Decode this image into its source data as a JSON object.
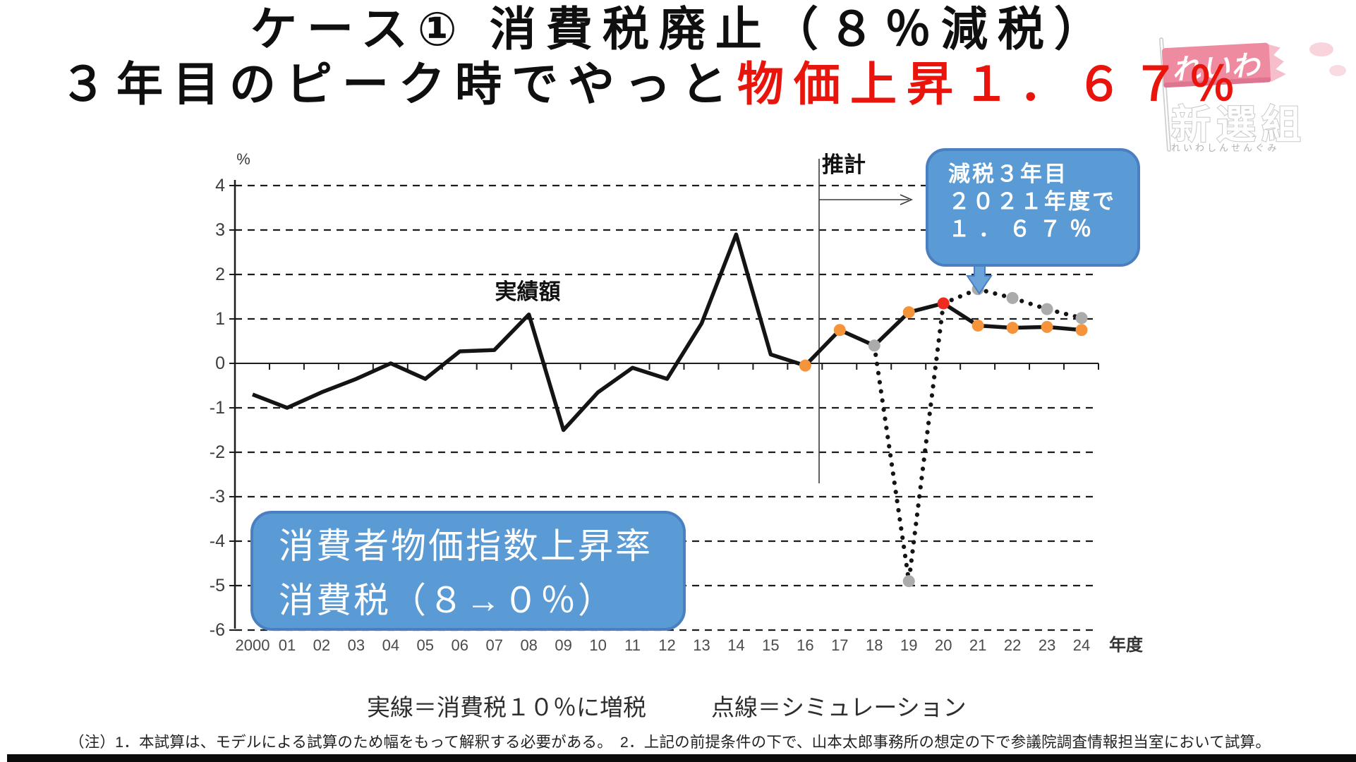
{
  "title": {
    "line1": "ケース① 消費税廃止（８％減税）",
    "line2_black": "３年目のピーク時でやっと",
    "line2_red": "物価上昇１．６７％"
  },
  "logo": {
    "flag_text": "れいわ",
    "name_text": "新選組",
    "reading_text": "れいわしんせんぐみ",
    "pink": "#ef8ba0"
  },
  "theme": {
    "box_blue": "#5b9bd5",
    "box_border": "#4a7fc1",
    "arrow_blue": "#6aa3da",
    "red_text": "#e9150d",
    "line_black": "#141414",
    "marker_orange": "#f5943a",
    "marker_gray": "#ababab",
    "marker_red": "#ee2b1e"
  },
  "chart_data": {
    "type": "line",
    "title": "消費者物価指数上昇率 消費税（８→０％）",
    "ylabel": "%",
    "xlabel": "年度",
    "ylim": [
      -6,
      4
    ],
    "yticks": [
      4,
      3,
      2,
      1,
      0,
      -1,
      -2,
      -3,
      -4,
      -5,
      -6
    ],
    "grid": "dashed-horizontal",
    "categories": [
      "2000",
      "01",
      "02",
      "03",
      "04",
      "05",
      "06",
      "07",
      "08",
      "09",
      "10",
      "11",
      "12",
      "13",
      "14",
      "15",
      "16",
      "17",
      "18",
      "19",
      "20",
      "21",
      "22",
      "23",
      "24"
    ],
    "series": [
      {
        "name": "実線＝消費税１０％に増税（実績額）",
        "style": "solid",
        "start_index": 0,
        "values": [
          -0.7,
          -1.0,
          -0.65,
          -0.35,
          0.0,
          -0.35,
          0.27,
          0.3,
          1.1,
          -1.5,
          -0.65,
          -0.1,
          -0.35,
          0.9,
          2.9,
          0.2,
          -0.05,
          0.75,
          0.4,
          1.15,
          1.35,
          0.85,
          0.8,
          0.82,
          0.75
        ]
      },
      {
        "name": "点線＝シミュレーション（消費税８→０％）",
        "style": "dotted",
        "start_index": 18,
        "values": [
          0.4,
          -4.9,
          1.35,
          1.67,
          1.47,
          1.22,
          1.02
        ]
      }
    ],
    "markers": {
      "solid": [
        [
          16,
          "#f5943a"
        ],
        [
          17,
          "#f5943a"
        ],
        [
          18,
          "#ababab"
        ],
        [
          19,
          "#f5943a"
        ],
        [
          20,
          "#ee2b1e"
        ],
        [
          21,
          "#f5943a"
        ],
        [
          22,
          "#f5943a"
        ],
        [
          23,
          "#f5943a"
        ],
        [
          24,
          "#f5943a"
        ]
      ],
      "dotted": [
        [
          19,
          "#ababab"
        ],
        [
          21,
          "#ababab"
        ],
        [
          22,
          "#ababab"
        ],
        [
          23,
          "#ababab"
        ],
        [
          24,
          "#ababab"
        ]
      ]
    },
    "annotations": {
      "actual": "実績額",
      "estimate": "推計",
      "estimate_divider_year_index": 16.4,
      "callout_peak": {
        "year": "2021",
        "value": 1.67
      }
    }
  },
  "callout": {
    "line1": "減税３年目",
    "line2": "２０２１年度で",
    "line3": "１．６７％"
  },
  "series_box": {
    "line1": "消費者物価指数上昇率",
    "line2": "消費税（８→０％）"
  },
  "legend": {
    "solid_label": "実線＝消費税１０％に増税",
    "dotted_label": "点線＝シミュレーション"
  },
  "footnote": "（注）1．本試算は、モデルによる試算のため幅をもって解釈する必要がある。　2．上記の前提条件の下で、山本太郎事務所の想定の下で参議院調査情報担当室において試算。"
}
